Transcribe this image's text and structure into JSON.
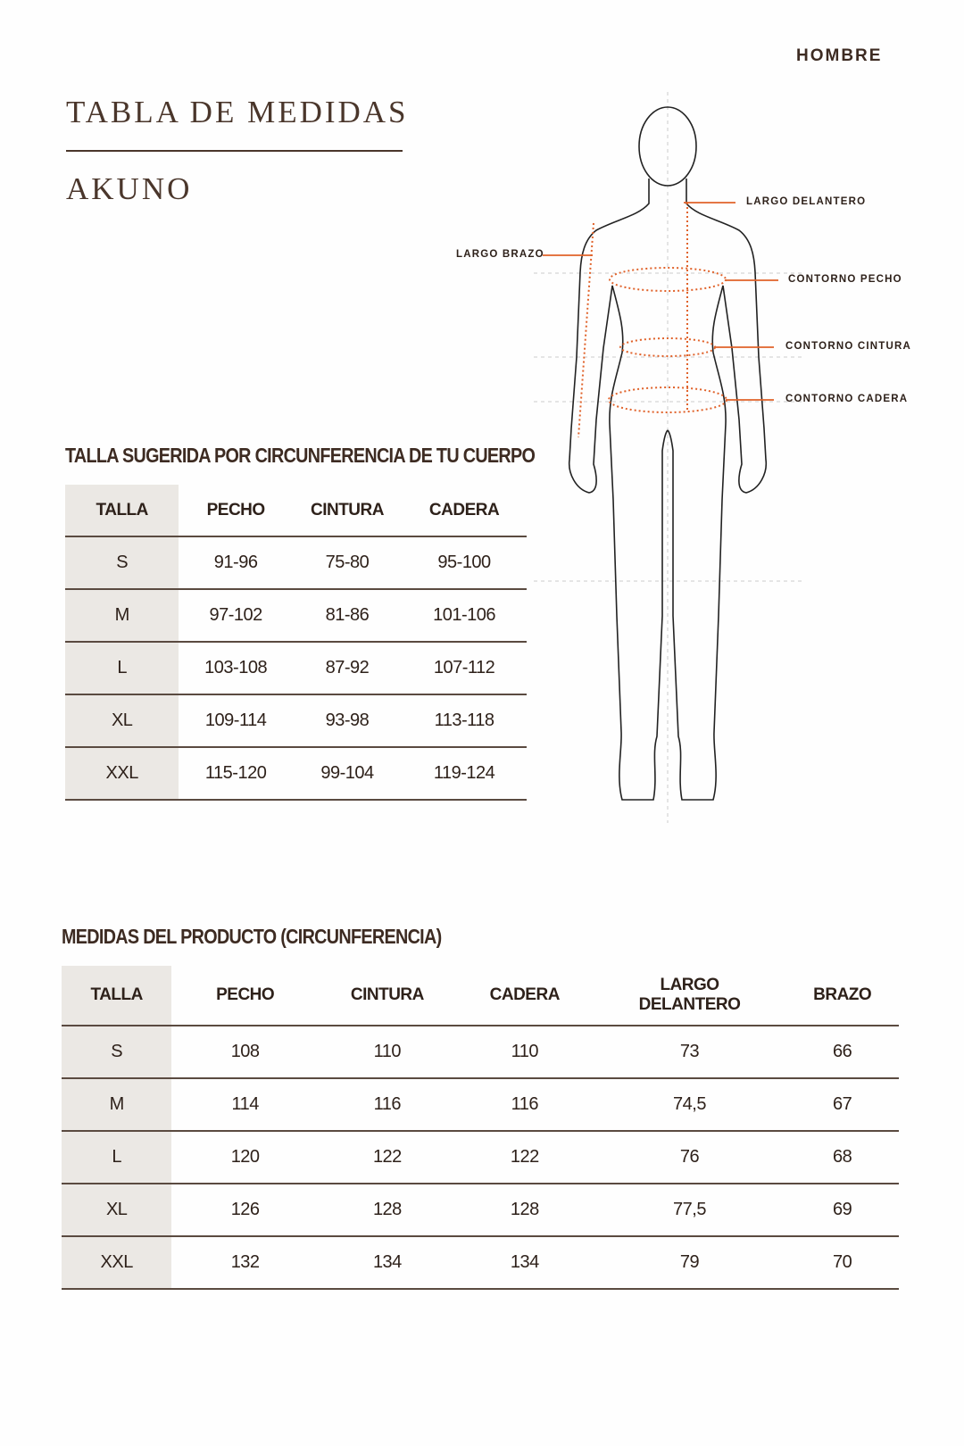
{
  "header": {
    "gender": "HOMBRE",
    "title": "TABLA DE MEDIDAS",
    "brand": "AKUNO"
  },
  "figure": {
    "labels": {
      "largo_delantero": "LARGO DELANTERO",
      "largo_brazo": "LARGO BRAZO",
      "contorno_pecho": "CONTORNO PECHO",
      "contorno_cintura": "CONTORNO CINTURA",
      "contorno_cadera": "CONTORNO CADERA"
    },
    "accent_color": "#e0622a"
  },
  "body_table": {
    "title": "TALLA SUGERIDA POR CIRCUNFERENCIA DE TU CUERPO",
    "headers": [
      "TALLA",
      "PECHO",
      "CINTURA",
      "CADERA"
    ],
    "rows": [
      [
        "S",
        "91-96",
        "75-80",
        "95-100"
      ],
      [
        "M",
        "97-102",
        "81-86",
        "101-106"
      ],
      [
        "L",
        "103-108",
        "87-92",
        "107-112"
      ],
      [
        "XL",
        "109-114",
        "93-98",
        "113-118"
      ],
      [
        "XXL",
        "115-120",
        "99-104",
        "119-124"
      ]
    ]
  },
  "product_table": {
    "title": "MEDIDAS DEL PRODUCTO (CIRCUNFERENCIA)",
    "headers": [
      "TALLA",
      "PECHO",
      "CINTURA",
      "CADERA",
      "LARGO DELANTERO",
      "BRAZO"
    ],
    "rows": [
      [
        "S",
        "108",
        "110",
        "110",
        "73",
        "66"
      ],
      [
        "M",
        "114",
        "116",
        "116",
        "74,5",
        "67"
      ],
      [
        "L",
        "120",
        "122",
        "122",
        "76",
        "68"
      ],
      [
        "XL",
        "126",
        "128",
        "128",
        "77,5",
        "69"
      ],
      [
        "XXL",
        "132",
        "134",
        "134",
        "79",
        "70"
      ]
    ]
  }
}
